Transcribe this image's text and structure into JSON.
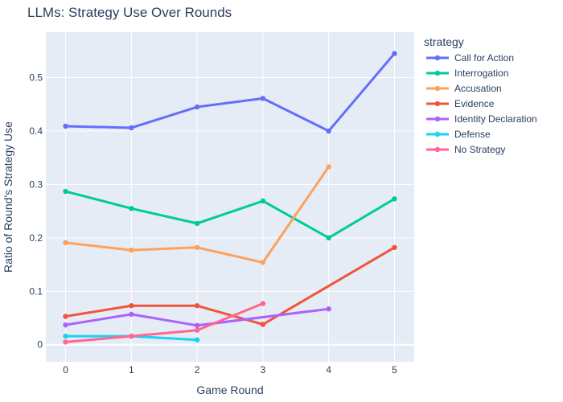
{
  "chart_data": {
    "type": "line",
    "title": "LLMs: Strategy Use Over Rounds",
    "xlabel": "Game Round",
    "ylabel": "Ratio of Round's Strategy Use",
    "xlim": [
      -0.3,
      5.3
    ],
    "ylim": [
      -0.032,
      0.585
    ],
    "x_ticks": [
      0,
      1,
      2,
      3,
      4,
      5
    ],
    "y_ticks": [
      0,
      0.1,
      0.2,
      0.3,
      0.4,
      0.5
    ],
    "grid": true,
    "legend_title": "strategy",
    "legend_position": "right",
    "series": [
      {
        "name": "Call for Action",
        "color": "#636efa",
        "x": [
          0,
          1,
          2,
          3,
          4,
          5
        ],
        "y": [
          0.409,
          0.406,
          0.445,
          0.461,
          0.4,
          0.545
        ]
      },
      {
        "name": "Interrogation",
        "color": "#00cc96",
        "x": [
          0,
          1,
          2,
          3,
          4,
          5
        ],
        "y": [
          0.287,
          0.255,
          0.227,
          0.269,
          0.2,
          0.273
        ]
      },
      {
        "name": "Accusation",
        "color": "#ffa15a",
        "x": [
          0,
          1,
          2,
          3,
          4
        ],
        "y": [
          0.191,
          0.177,
          0.182,
          0.154,
          0.333
        ]
      },
      {
        "name": "Evidence",
        "color": "#ef553b",
        "x": [
          0,
          1,
          2,
          3,
          5
        ],
        "y": [
          0.053,
          0.073,
          0.073,
          0.038,
          0.182
        ]
      },
      {
        "name": "Identity Declaration",
        "color": "#ab63fa",
        "x": [
          0,
          1,
          2,
          4
        ],
        "y": [
          0.037,
          0.057,
          0.036,
          0.067
        ]
      },
      {
        "name": "Defense",
        "color": "#19d3f3",
        "x": [
          0,
          1,
          2
        ],
        "y": [
          0.016,
          0.016,
          0.009
        ]
      },
      {
        "name": "No Strategy",
        "color": "#ff6692",
        "x": [
          0,
          1,
          2,
          3
        ],
        "y": [
          0.005,
          0.016,
          0.027,
          0.077
        ]
      }
    ]
  }
}
